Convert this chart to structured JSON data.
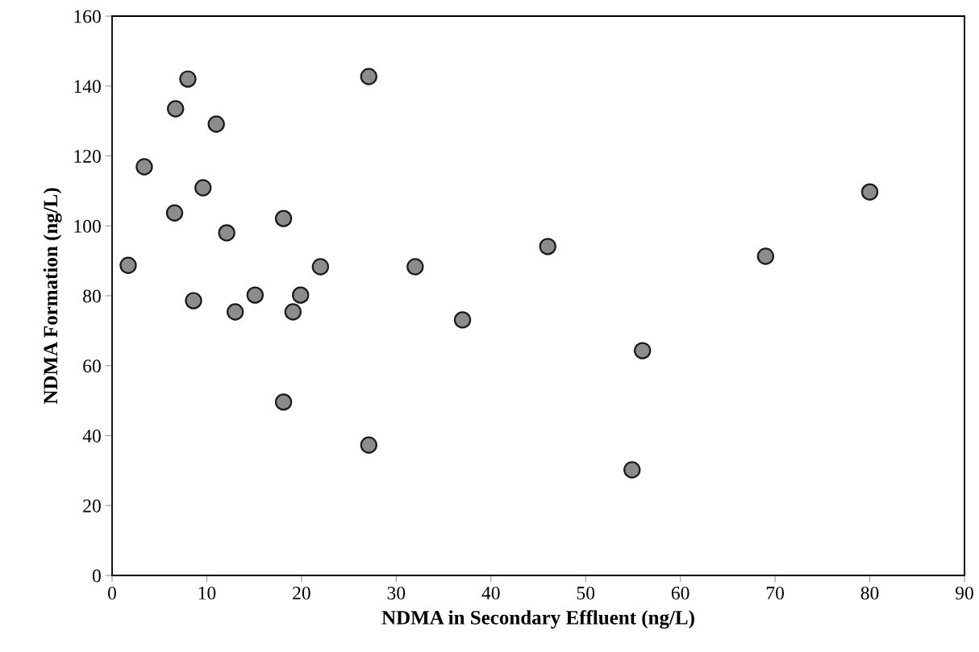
{
  "chart_data": {
    "type": "scatter",
    "xlabel": "NDMA in Secondary Effluent (ng/L)",
    "ylabel": "NDMA Formation (ng/L)",
    "x": [
      1.7,
      3.4,
      6.6,
      6.7,
      8.0,
      8.6,
      9.6,
      11.0,
      12.1,
      13.0,
      15.1,
      18.1,
      18.1,
      19.1,
      19.9,
      22.0,
      27.1,
      27.1,
      32.0,
      37.0,
      46.0,
      54.9,
      56.0,
      69.0,
      80.0
    ],
    "values": [
      88.7,
      116.9,
      103.7,
      133.5,
      142,
      78.6,
      110.9,
      129.1,
      98,
      75.4,
      80.2,
      102.1,
      49.6,
      75.4,
      80.2,
      88.3,
      142.7,
      37.3,
      88.3,
      73.1,
      94.1,
      30.2,
      64.3,
      91.3,
      109.7
    ],
    "color": "#8c8c8c",
    "marker": "circle",
    "xlim": [
      0,
      90
    ],
    "xticks": [
      0,
      10,
      20,
      30,
      40,
      50,
      60,
      70,
      80,
      90
    ],
    "ylim": [
      0,
      160
    ],
    "yticks": [
      0,
      20,
      40,
      60,
      80,
      100,
      120,
      140,
      160
    ],
    "grid": false
  }
}
